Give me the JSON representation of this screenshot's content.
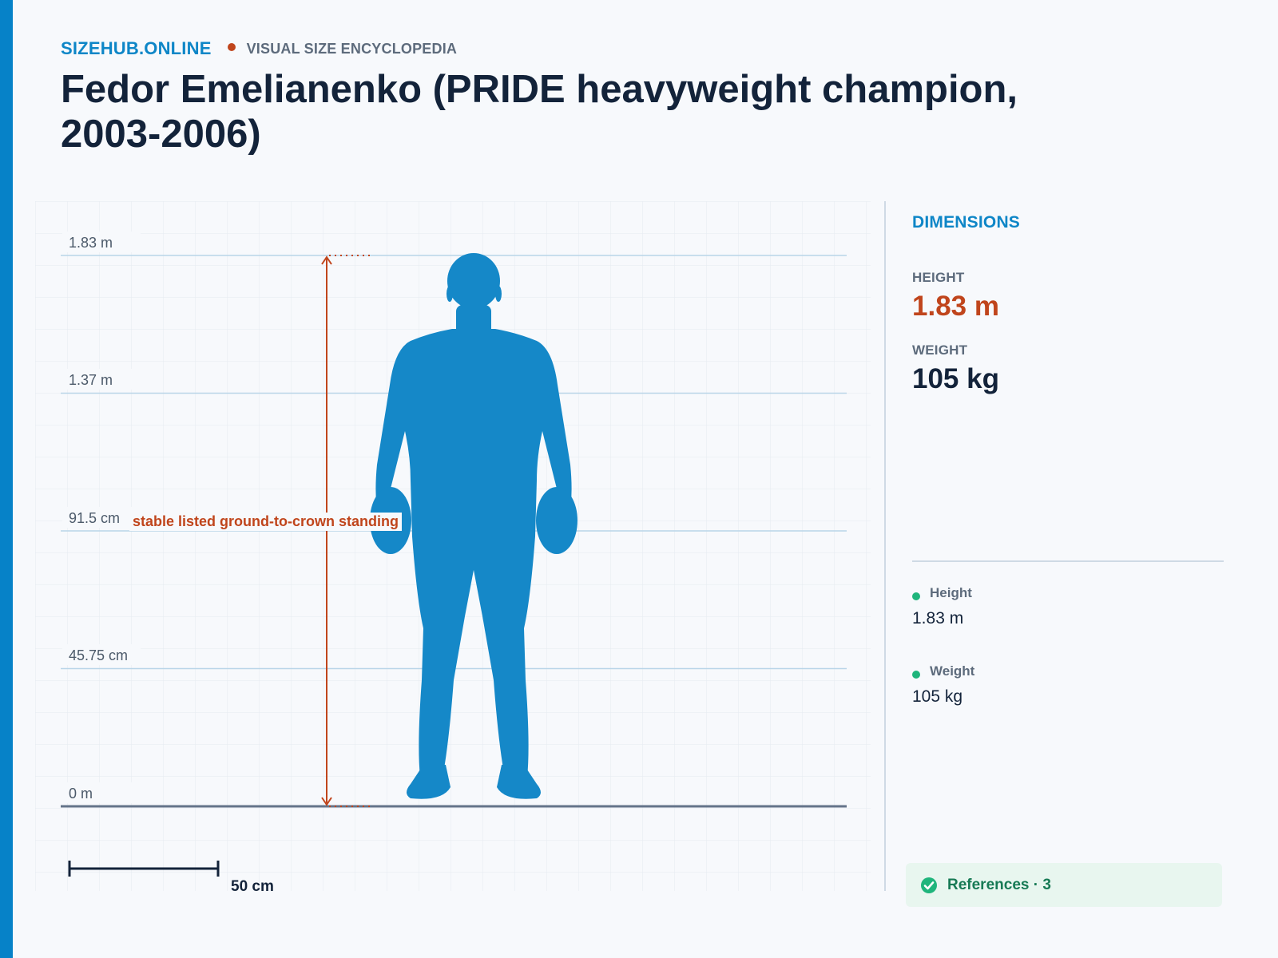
{
  "brand": {
    "name": "SIZEHUB.ONLINE",
    "tagline": "VISUAL SIZE ENCYCLOPEDIA"
  },
  "page": {
    "title": "Fedor Emelianenko (PRIDE heavyweight champion, 2003-2006)"
  },
  "colors": {
    "accent": "#0682c8",
    "brand": "#0e86c7",
    "silhouette": "#1588c8",
    "annotation": "#c0451c",
    "success": "#1fb57c"
  },
  "figure": {
    "scale_labels": [
      "1.83 m",
      "1.37 m",
      "91.5 cm",
      "45.75 cm",
      "0 m"
    ],
    "annotation": "stable listed ground-to-crown standing",
    "scale_bar_label": "50 cm"
  },
  "panel": {
    "heading": "DIMENSIONS",
    "height_label": "HEIGHT",
    "height_value": "1.83 m",
    "weight_label": "WEIGHT",
    "weight_value": "105 kg",
    "legend": [
      {
        "name": "Height",
        "value": "1.83 m"
      },
      {
        "name": "Weight",
        "value": "105 kg"
      }
    ],
    "references_label": "References · 3",
    "references_icon": "check-circle-icon"
  }
}
